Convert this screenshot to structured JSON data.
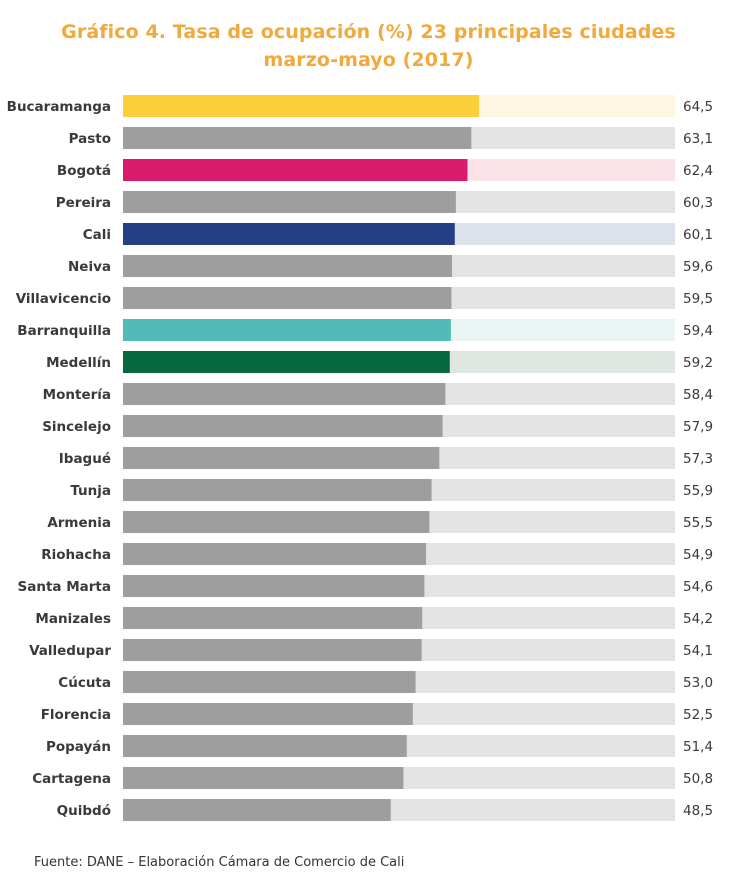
{
  "title_line1": "Gráfico 4. Tasa de ocupación (%) 23 principales ciudades",
  "title_line2": "marzo-mayo (2017)",
  "footer": "Fuente: DANE – Elaboración Cámara de Comercio de Cali",
  "colors": {
    "default_bar": "#9E9E9E",
    "default_track": "#E3E3E3",
    "title": "#F2A93B",
    "text": "#3A3A3A"
  },
  "chart_data": {
    "type": "bar",
    "orientation": "horizontal",
    "title": "Gráfico 4. Tasa de ocupación (%) 23 principales ciudades marzo-mayo (2017)",
    "xlabel": "",
    "ylabel": "",
    "xlim": [
      0,
      100
    ],
    "categories": [
      "Bucaramanga",
      "Pasto",
      "Bogotá",
      "Pereira",
      "Cali",
      "Neiva",
      "Villavicencio",
      "Barranquilla",
      "Medellín",
      "Montería",
      "Sincelejo",
      "Ibagué",
      "Tunja",
      "Armenia",
      "Riohacha",
      "Santa Marta",
      "Manizales",
      "Valledupar",
      "Cúcuta",
      "Florencia",
      "Popayán",
      "Cartagena",
      "Quibdó"
    ],
    "values": [
      64.5,
      63.1,
      62.4,
      60.3,
      60.1,
      59.6,
      59.5,
      59.4,
      59.2,
      58.4,
      57.9,
      57.3,
      55.9,
      55.5,
      54.9,
      54.6,
      54.2,
      54.1,
      53.0,
      52.5,
      51.4,
      50.8,
      48.5
    ],
    "value_labels": [
      "64,5",
      "63,1",
      "62,4",
      "60,3",
      "60,1",
      "59,6",
      "59,5",
      "59,4",
      "59,2",
      "58,4",
      "57,9",
      "57,3",
      "55,9",
      "55,5",
      "54,9",
      "54,6",
      "54,2",
      "54,1",
      "53,0",
      "52,5",
      "51,4",
      "50,8",
      "48,5"
    ],
    "highlights": {
      "Bucaramanga": {
        "bar": "#FCD03A",
        "track": "#FEF6E0"
      },
      "Bogotá": {
        "bar": "#D81B6A",
        "track": "#FBE2E8"
      },
      "Cali": {
        "bar": "#253F86",
        "track": "#DDE1EC"
      },
      "Barranquilla": {
        "bar": "#52BBB8",
        "track": "#EAF4F2"
      },
      "Medellín": {
        "bar": "#05683F",
        "track": "#E0E7E0"
      }
    }
  }
}
